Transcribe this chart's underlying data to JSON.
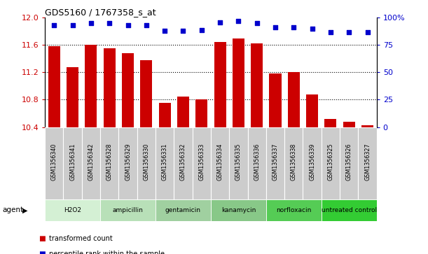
{
  "title": "GDS5160 / 1767358_s_at",
  "samples": [
    "GSM1356340",
    "GSM1356341",
    "GSM1356342",
    "GSM1356328",
    "GSM1356329",
    "GSM1356330",
    "GSM1356331",
    "GSM1356332",
    "GSM1356333",
    "GSM1356334",
    "GSM1356335",
    "GSM1356336",
    "GSM1356337",
    "GSM1356338",
    "GSM1356339",
    "GSM1356325",
    "GSM1356326",
    "GSM1356327"
  ],
  "transformed_count": [
    11.58,
    11.28,
    11.6,
    11.55,
    11.48,
    11.38,
    10.75,
    10.85,
    10.8,
    11.65,
    11.7,
    11.63,
    11.18,
    11.2,
    10.88,
    10.52,
    10.48,
    10.43
  ],
  "percentile_rank": [
    93,
    93,
    95,
    95,
    93,
    93,
    88,
    88,
    89,
    96,
    97,
    95,
    91,
    91,
    90,
    87,
    87,
    87
  ],
  "agents": [
    {
      "name": "H2O2",
      "start": 0,
      "end": 3,
      "color": "#d4f0d4"
    },
    {
      "name": "ampicillin",
      "start": 3,
      "end": 6,
      "color": "#b8e0b8"
    },
    {
      "name": "gentamicin",
      "start": 6,
      "end": 9,
      "color": "#a0d0a0"
    },
    {
      "name": "kanamycin",
      "start": 9,
      "end": 12,
      "color": "#88c888"
    },
    {
      "name": "norfloxacin",
      "start": 12,
      "end": 15,
      "color": "#55cc55"
    },
    {
      "name": "untreated control",
      "start": 15,
      "end": 18,
      "color": "#33cc33"
    }
  ],
  "ylim_left": [
    10.4,
    12.0
  ],
  "ylim_right": [
    0,
    100
  ],
  "yticks_left": [
    10.4,
    10.8,
    11.2,
    11.6,
    12.0
  ],
  "yticks_right": [
    0,
    25,
    50,
    75,
    100
  ],
  "ytick_labels_right": [
    "0",
    "25",
    "50",
    "75",
    "100%"
  ],
  "hgrid_values": [
    10.8,
    11.2,
    11.6
  ],
  "bar_color": "#cc0000",
  "dot_color": "#0000cc",
  "background_color": "#ffffff",
  "tick_label_color_left": "#cc0000",
  "tick_label_color_right": "#0000cc",
  "cell_color": "#cccccc",
  "cell_edge_color": "#ffffff",
  "legend_red_label": "transformed count",
  "legend_blue_label": "percentile rank within the sample",
  "agent_label": "agent"
}
